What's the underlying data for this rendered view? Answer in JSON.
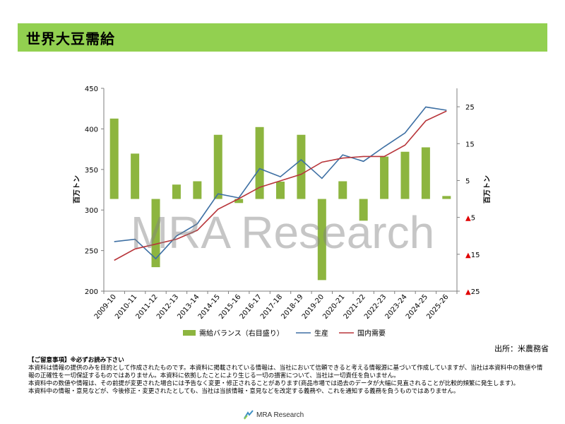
{
  "page": {
    "title": "世界大豆需給",
    "source": "出所：米農務省",
    "watermark": "MRA Research",
    "footer_logo": "MRA Research",
    "notes": {
      "heading": "【ご留意事項】※必ずお読み下さい",
      "lines": [
        "本資料は情報の提供のみを目的として作成されたものです。本資料に掲載されている情報は、当社において信頼できると考える情報源に基づいて作成していますが、当社は本資料中の数値や情報の正確性を一切保証するものではありません。本資料に依拠したことにより生じる一切の損害について、当社は一切責任を負いません。",
        "本資料中の数値や情報は、その前提が変更された場合には予告なく変更・修正されることがあります(商品市場では過去のデータが大幅に見直されることが比較的頻繁に発生します)。",
        "本資料中の情報・意見などが、今後修正・変更されたとしても、当社は当該情報・意見などを改定する義務や、これを通知する義務を負うものではありません。"
      ]
    }
  },
  "chart_data": {
    "type": "bar+line",
    "categories": [
      "2009-10",
      "2010-11",
      "2011-12",
      "2012-13",
      "2013-14",
      "2014-15",
      "2015-16",
      "2016-17",
      "2017-18",
      "2018-19",
      "2019-20",
      "2020-21",
      "2021-22",
      "2022-23",
      "2023-24",
      "2024-25",
      "2025-26"
    ],
    "left_axis": {
      "label": "百万トン",
      "ylim": [
        200,
        450
      ],
      "ticks": [
        "450",
        "400",
        "350",
        "300",
        "250",
        "200"
      ]
    },
    "right_axis": {
      "label": "百万トン",
      "ylim": [
        -25,
        30
      ],
      "ticks": [
        "25",
        "15",
        "5",
        "▲5",
        "▲15",
        "▲25"
      ]
    },
    "series": [
      {
        "name": "需給バランス（右目盛り）",
        "type": "bar",
        "axis": "right",
        "color": "#8db53f",
        "values": [
          21.8,
          12.3,
          -18.5,
          3.9,
          4.8,
          17.4,
          -1.1,
          19.5,
          4.7,
          17.4,
          -22.0,
          4.8,
          -5.9,
          11.5,
          12.8,
          14.0,
          0.8
        ]
      },
      {
        "name": "生産",
        "type": "line",
        "axis": "left",
        "color": "#3d6fa3",
        "values": [
          261,
          264,
          240,
          268,
          283,
          320,
          315,
          351,
          341,
          362,
          339,
          368,
          360,
          378,
          395,
          427,
          423
        ]
      },
      {
        "name": "国内需要",
        "type": "line",
        "axis": "left",
        "color": "#b8353a",
        "values": [
          238,
          252,
          258,
          264,
          275,
          301,
          314,
          328,
          336,
          344,
          359,
          364,
          366,
          366,
          380,
          410,
          422
        ]
      }
    ],
    "grid": false,
    "legend": "bottom"
  }
}
